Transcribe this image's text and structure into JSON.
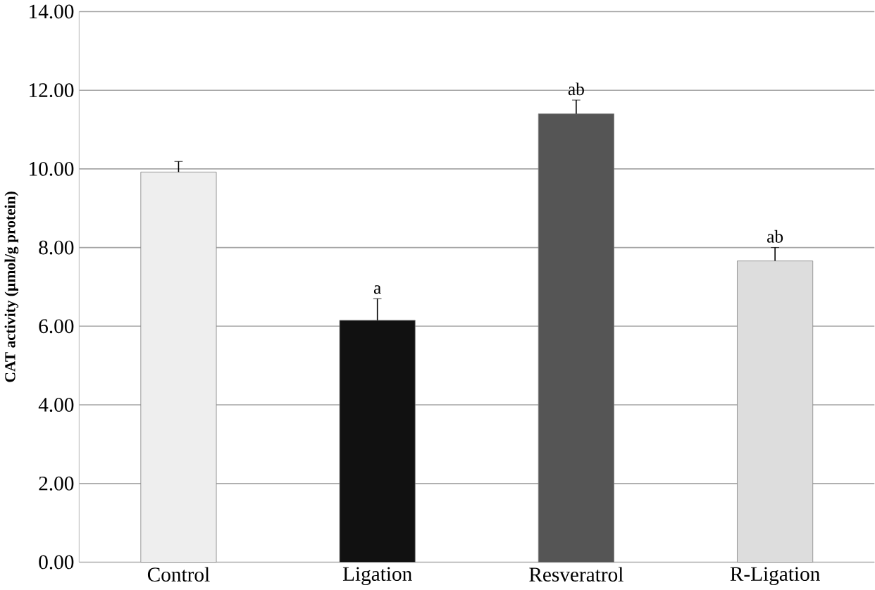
{
  "chart_data": {
    "type": "bar",
    "ylabel": "CAT activity (µmol/g protein)",
    "categories": [
      "Control",
      "Ligation",
      "Resveratrol",
      "R-Ligation"
    ],
    "values": [
      9.92,
      6.15,
      11.4,
      7.66
    ],
    "errors": [
      0.27,
      0.55,
      0.35,
      0.34
    ],
    "colors": [
      "#eeeeee",
      "#111111",
      "#555555",
      "#dddddd"
    ],
    "ylim": [
      0,
      14
    ],
    "yticks": [
      {
        "value": 0,
        "label": "0.00"
      },
      {
        "value": 2,
        "label": "2.00"
      },
      {
        "value": 4,
        "label": "4.00"
      },
      {
        "value": 6,
        "label": "6.00"
      },
      {
        "value": 8,
        "label": "8.00"
      },
      {
        "value": 10,
        "label": "10.00"
      },
      {
        "value": 12,
        "label": "12.00"
      },
      {
        "value": 14,
        "label": "14.00"
      }
    ],
    "grid": "y",
    "annotations": [
      {
        "text": "a",
        "x": "Ligation",
        "y": 6.7
      },
      {
        "text": "ab",
        "x": "Resveratrol",
        "y": 11.75
      },
      {
        "text": "ab",
        "x": "R-Ligation",
        "y": 8.0
      }
    ]
  }
}
